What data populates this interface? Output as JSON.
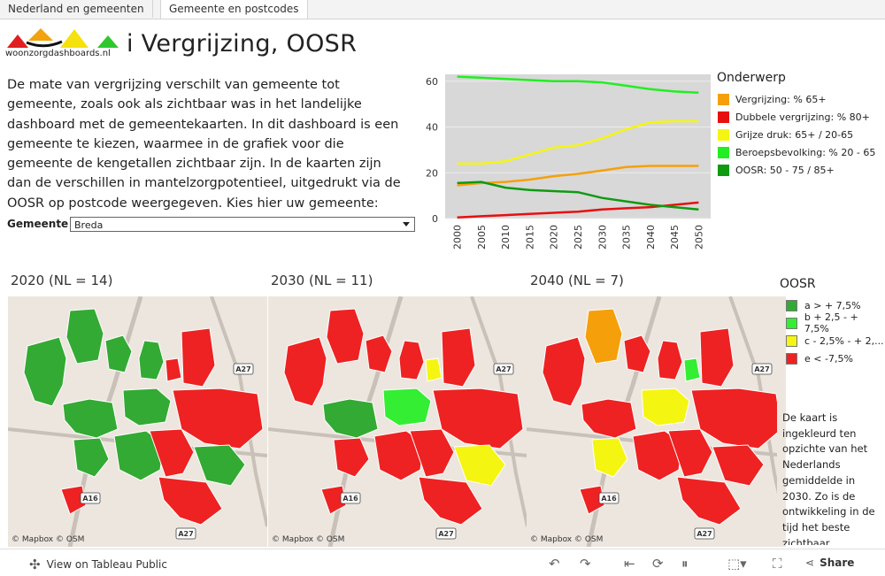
{
  "tabs": [
    "Nederland en gemeenten",
    "Gemeente en postcodes"
  ],
  "logo": {
    "text": "woonzorgdashboards.nl"
  },
  "title": "i Vergrijzing, OOSR",
  "intro": "De mate van vergrijzing verschilt van gemeente tot gemeente, zoals ook als zichtbaar was in het landelijke dashboard met de gemeentekaarten. In dit dashboard is een gemeente te kiezen, waarmee in de grafiek voor die gemeente de kengetallen zichtbaar zijn. In de kaarten zijn dan de  verschillen in mantelzorgpotentieel, uitgedrukt via de OOSR op postcode weergegeven. Kies hier uw gemeente:",
  "gemeente": {
    "label": "Gemeente",
    "value": "Breda"
  },
  "chart_legend_title": "Onderwerp",
  "chart_data": {
    "type": "line",
    "title": "",
    "xlabel": "",
    "ylabel": "",
    "x": [
      "2000",
      "2005",
      "2010",
      "2015",
      "2020",
      "2025",
      "2030",
      "2035",
      "2040",
      "2045",
      "2050"
    ],
    "yticks": [
      "0",
      "20",
      "40",
      "60"
    ],
    "ylim": [
      0,
      63
    ],
    "grid": true,
    "legend_position": "right",
    "series": [
      {
        "name": "Vergrijzing: % 65+",
        "color": "#f5a00a",
        "values": [
          14.5,
          15.5,
          16,
          17,
          18.5,
          19.5,
          21,
          22.5,
          23,
          23,
          23
        ]
      },
      {
        "name": "Dubbele vergrijzing: % 80+",
        "color": "#e80f0f",
        "values": [
          0.5,
          1,
          1.5,
          2,
          2.5,
          3,
          4,
          4.5,
          5,
          6,
          7
        ]
      },
      {
        "name": "Grijze druk: 65+ / 20-65",
        "color": "#f5f512",
        "values": [
          24,
          24,
          25,
          28,
          31,
          32,
          35,
          39,
          42,
          42.5,
          42.5
        ]
      },
      {
        "name": "Beroepsbevolking: % 20 - 65",
        "color": "#22ee22",
        "values": [
          62,
          61.5,
          61,
          60.5,
          60,
          60,
          59.5,
          58,
          56.5,
          55.5,
          55
        ]
      },
      {
        "name": "OOSR: 50 - 75 / 85+",
        "color": "#109a10",
        "values": [
          15.5,
          16,
          13.5,
          12.5,
          12,
          11.5,
          9,
          7.5,
          6,
          5,
          4
        ]
      }
    ]
  },
  "maps": [
    {
      "title": "2020 (NL = 14)",
      "credit": "© Mapbox  © OSM"
    },
    {
      "title": "2030 (NL = 11)",
      "credit": "© Mapbox  © OSM"
    },
    {
      "title": "2040 (NL = 7)",
      "credit": "© Mapbox  © OSM"
    }
  ],
  "map_labels": {
    "a27": "A27",
    "a16": "A16"
  },
  "oosr": {
    "title": "OOSR",
    "items": [
      {
        "label": "a > + 7,5%",
        "color": "#33aa33"
      },
      {
        "label": "b + 2,5 - + 7,5%",
        "color": "#33ee33"
      },
      {
        "label": "c - 2,5% - + 2,...",
        "color": "#f5f512"
      },
      {
        "label": "e < -7,5%",
        "color": "#ee2222"
      }
    ]
  },
  "note": "De kaart is ingekleurd ten opzichte van het Nederlands gemiddelde in 2030. Zo is de ontwikkeling in de tijd het beste zichtbaar.",
  "footer": {
    "view_label": "View on Tableau Public",
    "share_label": "Share"
  },
  "icons": {
    "view": "tableau-icon",
    "undo": "undo-icon",
    "redo": "redo-icon",
    "revert": "revert-icon",
    "refresh": "refresh-icon",
    "pause": "pause-icon",
    "download": "download-icon",
    "fullscreen": "fullscreen-icon",
    "share": "share-icon"
  }
}
